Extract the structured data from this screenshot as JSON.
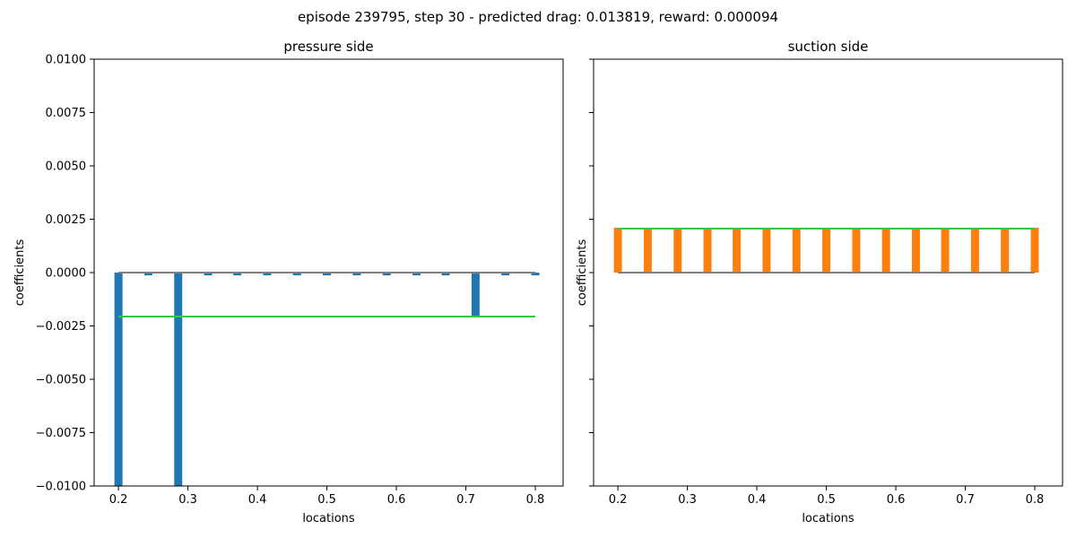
{
  "figure_title": "episode 239795, step 30 - predicted drag: 0.013819, reward: 0.000094",
  "colors": {
    "pressure_bars": "#1f77b4",
    "suction_bars": "#ff7f0e",
    "mean_line": "#2ecc40",
    "zero_line": "#808080",
    "axes": "#000000"
  },
  "chart_data": [
    {
      "type": "bar",
      "title": "pressure side",
      "xlabel": "locations",
      "ylabel": "coefficients",
      "xlim": [
        0.165,
        0.84
      ],
      "ylim": [
        -0.01,
        0.01
      ],
      "xticks": [
        0.2,
        0.3,
        0.4,
        0.5,
        0.6,
        0.7,
        0.8
      ],
      "xtick_labels": [
        "0.2",
        "0.3",
        "0.4",
        "0.5",
        "0.6",
        "0.7",
        "0.8"
      ],
      "yticks": [
        0.01,
        0.0075,
        0.005,
        0.0025,
        0.0,
        -0.0025,
        -0.005,
        -0.0075,
        -0.01
      ],
      "ytick_labels": [
        "0.0100",
        "0.0075",
        "0.0050",
        "0.0025",
        "0.0000",
        "−0.0025",
        "−0.0050",
        "−0.0075",
        "−0.0100"
      ],
      "x": [
        0.2,
        0.243,
        0.286,
        0.329,
        0.371,
        0.414,
        0.457,
        0.5,
        0.543,
        0.586,
        0.629,
        0.671,
        0.714,
        0.757,
        0.8
      ],
      "values": [
        -0.01,
        -0.00013,
        -0.01,
        -0.00013,
        -0.00013,
        -0.00013,
        -0.00013,
        -0.00013,
        -0.00013,
        -0.00013,
        -0.00013,
        -0.00013,
        -0.0021,
        -0.00013,
        -0.00013
      ],
      "mean_value": -0.00206,
      "zero_value": 0.0,
      "grid": false
    },
    {
      "type": "bar",
      "title": "suction side",
      "xlabel": "locations",
      "ylabel": "coefficients",
      "xlim": [
        0.165,
        0.84
      ],
      "ylim": [
        -0.01,
        0.01
      ],
      "xticks": [
        0.2,
        0.3,
        0.4,
        0.5,
        0.6,
        0.7,
        0.8
      ],
      "xtick_labels": [
        "0.2",
        "0.3",
        "0.4",
        "0.5",
        "0.6",
        "0.7",
        "0.8"
      ],
      "x": [
        0.2,
        0.243,
        0.286,
        0.329,
        0.371,
        0.414,
        0.457,
        0.5,
        0.543,
        0.586,
        0.629,
        0.671,
        0.714,
        0.757,
        0.8
      ],
      "values": [
        0.0021,
        0.0021,
        0.0021,
        0.0021,
        0.0021,
        0.0021,
        0.0021,
        0.0021,
        0.0021,
        0.0021,
        0.0021,
        0.0021,
        0.0021,
        0.0021,
        0.0021
      ],
      "mean_value": 0.00206,
      "zero_value": 0.0,
      "grid": false,
      "yticklabels_visible": false
    }
  ]
}
